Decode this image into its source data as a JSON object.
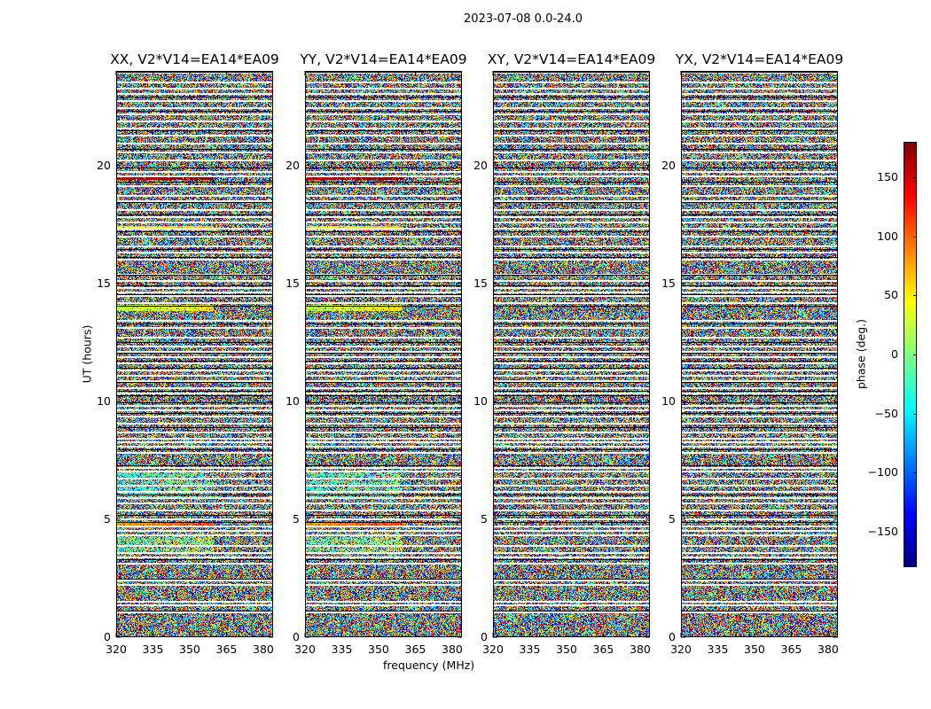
{
  "suptitle": "2023-07-08 0.0-24.0",
  "chart_data": {
    "type": "heatmap",
    "xlabel": "frequency (MHz)",
    "ylabel": "UT (hours)",
    "xlim": [
      320,
      384
    ],
    "ylim": [
      0,
      24
    ],
    "x_ticks": [
      "320",
      "335",
      "350",
      "365",
      "380"
    ],
    "y_ticks": [
      "0",
      "5",
      "10",
      "15",
      "20"
    ],
    "panels": [
      {
        "title": "XX, V2*V14=EA14*EA09"
      },
      {
        "title": "YY, V2*V14=EA14*EA09"
      },
      {
        "title": "XY, V2*V14=EA14*EA09"
      },
      {
        "title": "YX, V2*V14=EA14*EA09"
      }
    ],
    "colorbar": {
      "label": "phase (deg.)",
      "range": [
        -180,
        180
      ],
      "ticks": [
        "150",
        "100",
        "50",
        "0",
        "−50",
        "−100",
        "−150"
      ],
      "colormap": "jet"
    },
    "flagged_hours": [
      0.05,
      1.1,
      1.4,
      1.55,
      2.25,
      2.45,
      3.15,
      3.4,
      3.6,
      3.9,
      4.35,
      4.55,
      4.75,
      5.05,
      5.4,
      5.7,
      5.95,
      6.2,
      6.45,
      6.75,
      7.05,
      7.2,
      7.85,
      8.1,
      8.3,
      8.45,
      8.7,
      9.1,
      9.4,
      9.65,
      9.85,
      10.35,
      10.6,
      10.9,
      11.1,
      11.35,
      11.65,
      11.9,
      12.15,
      12.35,
      12.75,
      13.15,
      13.45,
      14.2,
      14.5,
      14.65,
      14.85,
      15.15,
      15.4,
      16.05,
      16.35,
      16.6,
      17.0,
      17.35,
      17.6,
      17.85,
      18.15,
      18.5,
      18.75,
      19.15,
      19.55,
      19.75,
      20.25,
      20.6,
      20.95,
      21.3,
      21.6,
      21.9,
      22.2,
      22.45,
      22.75,
      23.05,
      23.3,
      23.55,
      23.95
    ],
    "dark_hours": [
      0.02,
      1.12,
      2.47,
      3.3,
      4.9,
      5.2,
      6.05,
      7.3,
      7.95,
      8.92,
      9.5,
      9.95,
      10.25,
      10.45,
      10.8,
      11.4,
      11.7,
      12.05,
      12.5,
      13.3,
      14.05,
      14.55,
      14.9,
      15.35,
      16.1,
      16.45,
      17.2,
      17.9,
      18.45,
      19.3,
      19.9,
      20.7,
      21.5,
      22.3,
      22.9,
      23.98
    ]
  }
}
